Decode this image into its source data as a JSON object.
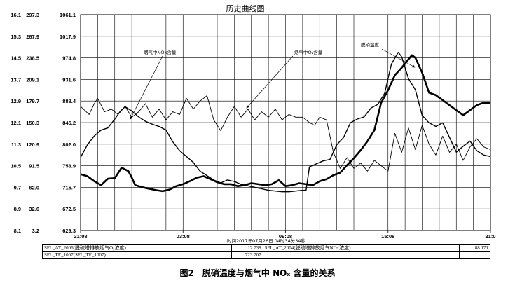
{
  "chart_data": {
    "type": "line",
    "title": "历史曲线图",
    "x_ticks": [
      "21:08",
      "03:08",
      "09:08",
      "15:08",
      "21:0"
    ],
    "y_ticks": [
      [
        "16.1",
        "297.3",
        "1061.1"
      ],
      [
        "15.3",
        "267.9",
        "1017.9"
      ],
      [
        "14.5",
        "238.5",
        "974.8"
      ],
      [
        "13.7",
        "209.1",
        "931.6"
      ],
      [
        "12.9",
        "179.7",
        "888.4"
      ],
      [
        "12.1",
        "150.3",
        "845.2"
      ],
      [
        "11.3",
        "120.9",
        "802.0"
      ],
      [
        "10.5",
        "91.5",
        "758.9"
      ],
      [
        "9.7",
        "62.0",
        "715.7"
      ],
      [
        "8.9",
        "32.6",
        "672.5"
      ],
      [
        "8.1",
        "3.2",
        "629.3"
      ]
    ],
    "axis_scales": {
      "o2": [
        8.1,
        16.1
      ],
      "nox": [
        3.2,
        297.3
      ],
      "temp": [
        629.3,
        1061.1
      ]
    },
    "x_hours_range": [
      0,
      24
    ],
    "x_caption": "时间2017年07月26日 04时34分34秒",
    "annotations": [
      "烟气中NOx含量",
      "烟气中O₂含量",
      "脱硝温度"
    ],
    "series": [
      {
        "name": "烟气中O₂含量",
        "scale": "o2",
        "width": 0.9,
        "points": [
          [
            0,
            12.7
          ],
          [
            0.5,
            12.4
          ],
          [
            0.8,
            12.8
          ],
          [
            1.0,
            13.0
          ],
          [
            1.4,
            12.5
          ],
          [
            1.8,
            12.6
          ],
          [
            2.2,
            12.4
          ],
          [
            2.6,
            12.7
          ],
          [
            3.0,
            12.3
          ],
          [
            3.4,
            12.5
          ],
          [
            3.8,
            12.8
          ],
          [
            4.2,
            12.3
          ],
          [
            4.6,
            12.6
          ],
          [
            5.0,
            12.2
          ],
          [
            5.4,
            12.5
          ],
          [
            5.8,
            12.4
          ],
          [
            6.2,
            13.0
          ],
          [
            6.6,
            12.6
          ],
          [
            7.0,
            12.9
          ],
          [
            7.4,
            13.1
          ],
          [
            7.8,
            12.2
          ],
          [
            8.2,
            11.8
          ],
          [
            8.6,
            12.3
          ],
          [
            9.0,
            12.7
          ],
          [
            9.4,
            12.3
          ],
          [
            9.8,
            12.6
          ],
          [
            10.2,
            12.2
          ],
          [
            10.6,
            12.5
          ],
          [
            11.0,
            12.3
          ],
          [
            11.4,
            12.6
          ],
          [
            11.8,
            12.2
          ],
          [
            12.2,
            12.4
          ],
          [
            12.6,
            12.3
          ],
          [
            13.0,
            12.3
          ],
          [
            13.4,
            12.1
          ],
          [
            13.7,
            12.0
          ],
          [
            14.0,
            12.3
          ],
          [
            14.4,
            12.2
          ],
          [
            14.8,
            11.0
          ],
          [
            15.2,
            10.4
          ],
          [
            15.6,
            10.8
          ],
          [
            16.0,
            10.4
          ],
          [
            16.4,
            10.6
          ],
          [
            16.8,
            10.3
          ],
          [
            17.2,
            10.7
          ],
          [
            17.6,
            10.5
          ],
          [
            18.0,
            10.3
          ],
          [
            18.4,
            11.7
          ],
          [
            18.8,
            11.0
          ],
          [
            19.2,
            11.9
          ],
          [
            19.6,
            11.1
          ],
          [
            20.0,
            12.0
          ],
          [
            20.4,
            11.3
          ],
          [
            20.8,
            10.9
          ],
          [
            21.2,
            11.6
          ],
          [
            21.6,
            11.0
          ],
          [
            22.0,
            11.3
          ],
          [
            22.4,
            10.7
          ],
          [
            22.8,
            11.2
          ],
          [
            23.2,
            11.5
          ],
          [
            23.6,
            11.2
          ],
          [
            24,
            11.1
          ]
        ]
      },
      {
        "name": "烟气中NOx含量",
        "scale": "nox",
        "width": 1.4,
        "points": [
          [
            0,
            103
          ],
          [
            0.4,
            120
          ],
          [
            0.8,
            132
          ],
          [
            1.2,
            140
          ],
          [
            1.6,
            143
          ],
          [
            2.0,
            155
          ],
          [
            2.3,
            165
          ],
          [
            2.6,
            172
          ],
          [
            3.0,
            166
          ],
          [
            3.4,
            158
          ],
          [
            3.8,
            152
          ],
          [
            4.2,
            148
          ],
          [
            4.6,
            145
          ],
          [
            5.0,
            140
          ],
          [
            5.4,
            124
          ],
          [
            5.8,
            112
          ],
          [
            6.2,
            104
          ],
          [
            6.6,
            96
          ],
          [
            7.0,
            84
          ],
          [
            7.4,
            78
          ],
          [
            7.8,
            72
          ],
          [
            8.2,
            68
          ],
          [
            8.6,
            72
          ],
          [
            9.0,
            70
          ],
          [
            9.4,
            66
          ],
          [
            9.8,
            64
          ],
          [
            10.2,
            62
          ],
          [
            10.6,
            60
          ],
          [
            11.0,
            58
          ],
          [
            11.4,
            57
          ],
          [
            11.8,
            56
          ],
          [
            12.2,
            56
          ],
          [
            12.6,
            57
          ],
          [
            13.0,
            58
          ],
          [
            13.2,
            58
          ],
          [
            13.4,
            90
          ],
          [
            13.8,
            94
          ],
          [
            14.2,
            98
          ],
          [
            14.6,
            100
          ],
          [
            15.0,
            120
          ],
          [
            15.4,
            130
          ],
          [
            15.8,
            150
          ],
          [
            16.2,
            155
          ],
          [
            16.6,
            158
          ],
          [
            17.0,
            170
          ],
          [
            17.4,
            175
          ],
          [
            17.8,
            190
          ],
          [
            18.2,
            230
          ],
          [
            18.6,
            246
          ],
          [
            18.8,
            240
          ],
          [
            19.2,
            210
          ],
          [
            19.6,
            195
          ],
          [
            20.0,
            160
          ],
          [
            20.4,
            150
          ],
          [
            20.8,
            145
          ],
          [
            21.2,
            150
          ],
          [
            21.6,
            130
          ],
          [
            22.0,
            110
          ],
          [
            22.4,
            118
          ],
          [
            22.8,
            125
          ],
          [
            23.2,
            112
          ],
          [
            23.6,
            106
          ],
          [
            24,
            104
          ]
        ]
      },
      {
        "name": "脱硝温度",
        "scale": "temp",
        "width": 2.6,
        "points": [
          [
            0,
            742
          ],
          [
            0.4,
            738
          ],
          [
            0.8,
            728
          ],
          [
            1.2,
            720
          ],
          [
            1.6,
            733
          ],
          [
            2.0,
            734
          ],
          [
            2.4,
            755
          ],
          [
            2.8,
            748
          ],
          [
            3.0,
            735
          ],
          [
            3.2,
            720
          ],
          [
            3.6,
            716
          ],
          [
            4.0,
            713
          ],
          [
            4.4,
            710
          ],
          [
            4.8,
            708
          ],
          [
            5.2,
            711
          ],
          [
            5.6,
            718
          ],
          [
            6.0,
            722
          ],
          [
            6.4,
            728
          ],
          [
            6.8,
            735
          ],
          [
            7.2,
            738
          ],
          [
            7.6,
            732
          ],
          [
            8.0,
            726
          ],
          [
            8.4,
            722
          ],
          [
            8.8,
            722
          ],
          [
            9.2,
            718
          ],
          [
            9.6,
            720
          ],
          [
            10.0,
            724
          ],
          [
            10.4,
            722
          ],
          [
            10.8,
            720
          ],
          [
            11.2,
            722
          ],
          [
            11.6,
            730
          ],
          [
            12.0,
            718
          ],
          [
            12.4,
            720
          ],
          [
            12.8,
            724
          ],
          [
            13.2,
            722
          ],
          [
            13.6,
            720
          ],
          [
            14.0,
            728
          ],
          [
            14.4,
            732
          ],
          [
            14.8,
            740
          ],
          [
            15.2,
            745
          ],
          [
            15.6,
            760
          ],
          [
            16.0,
            774
          ],
          [
            16.4,
            790
          ],
          [
            16.8,
            808
          ],
          [
            17.2,
            830
          ],
          [
            17.6,
            885
          ],
          [
            18.0,
            910
          ],
          [
            18.4,
            940
          ],
          [
            18.8,
            955
          ],
          [
            19.2,
            972
          ],
          [
            19.4,
            980
          ],
          [
            19.6,
            975
          ],
          [
            19.8,
            960
          ],
          [
            20.0,
            945
          ],
          [
            20.4,
            905
          ],
          [
            20.8,
            900
          ],
          [
            21.2,
            890
          ],
          [
            21.6,
            880
          ],
          [
            22.0,
            870
          ],
          [
            22.4,
            860
          ],
          [
            22.8,
            870
          ],
          [
            23.2,
            880
          ],
          [
            23.6,
            885
          ],
          [
            24,
            884
          ]
        ]
      }
    ],
    "legend_table": [
      {
        "tag": "SFL_AT_2006(脱硫塔排放烟气O₂浓度)",
        "value": "12.738",
        "tag2": "SFL_AT_2004(脱硫塔排放烟气NOx浓度)",
        "value2": "88.171"
      },
      {
        "tag": "SFL_TE_1007(SFL_TE_1007)",
        "value": "723.707",
        "tag2": "",
        "value2": ""
      }
    ]
  },
  "caption": "图2　脱硝温度与烟气中 NOₓ 含量的关系"
}
